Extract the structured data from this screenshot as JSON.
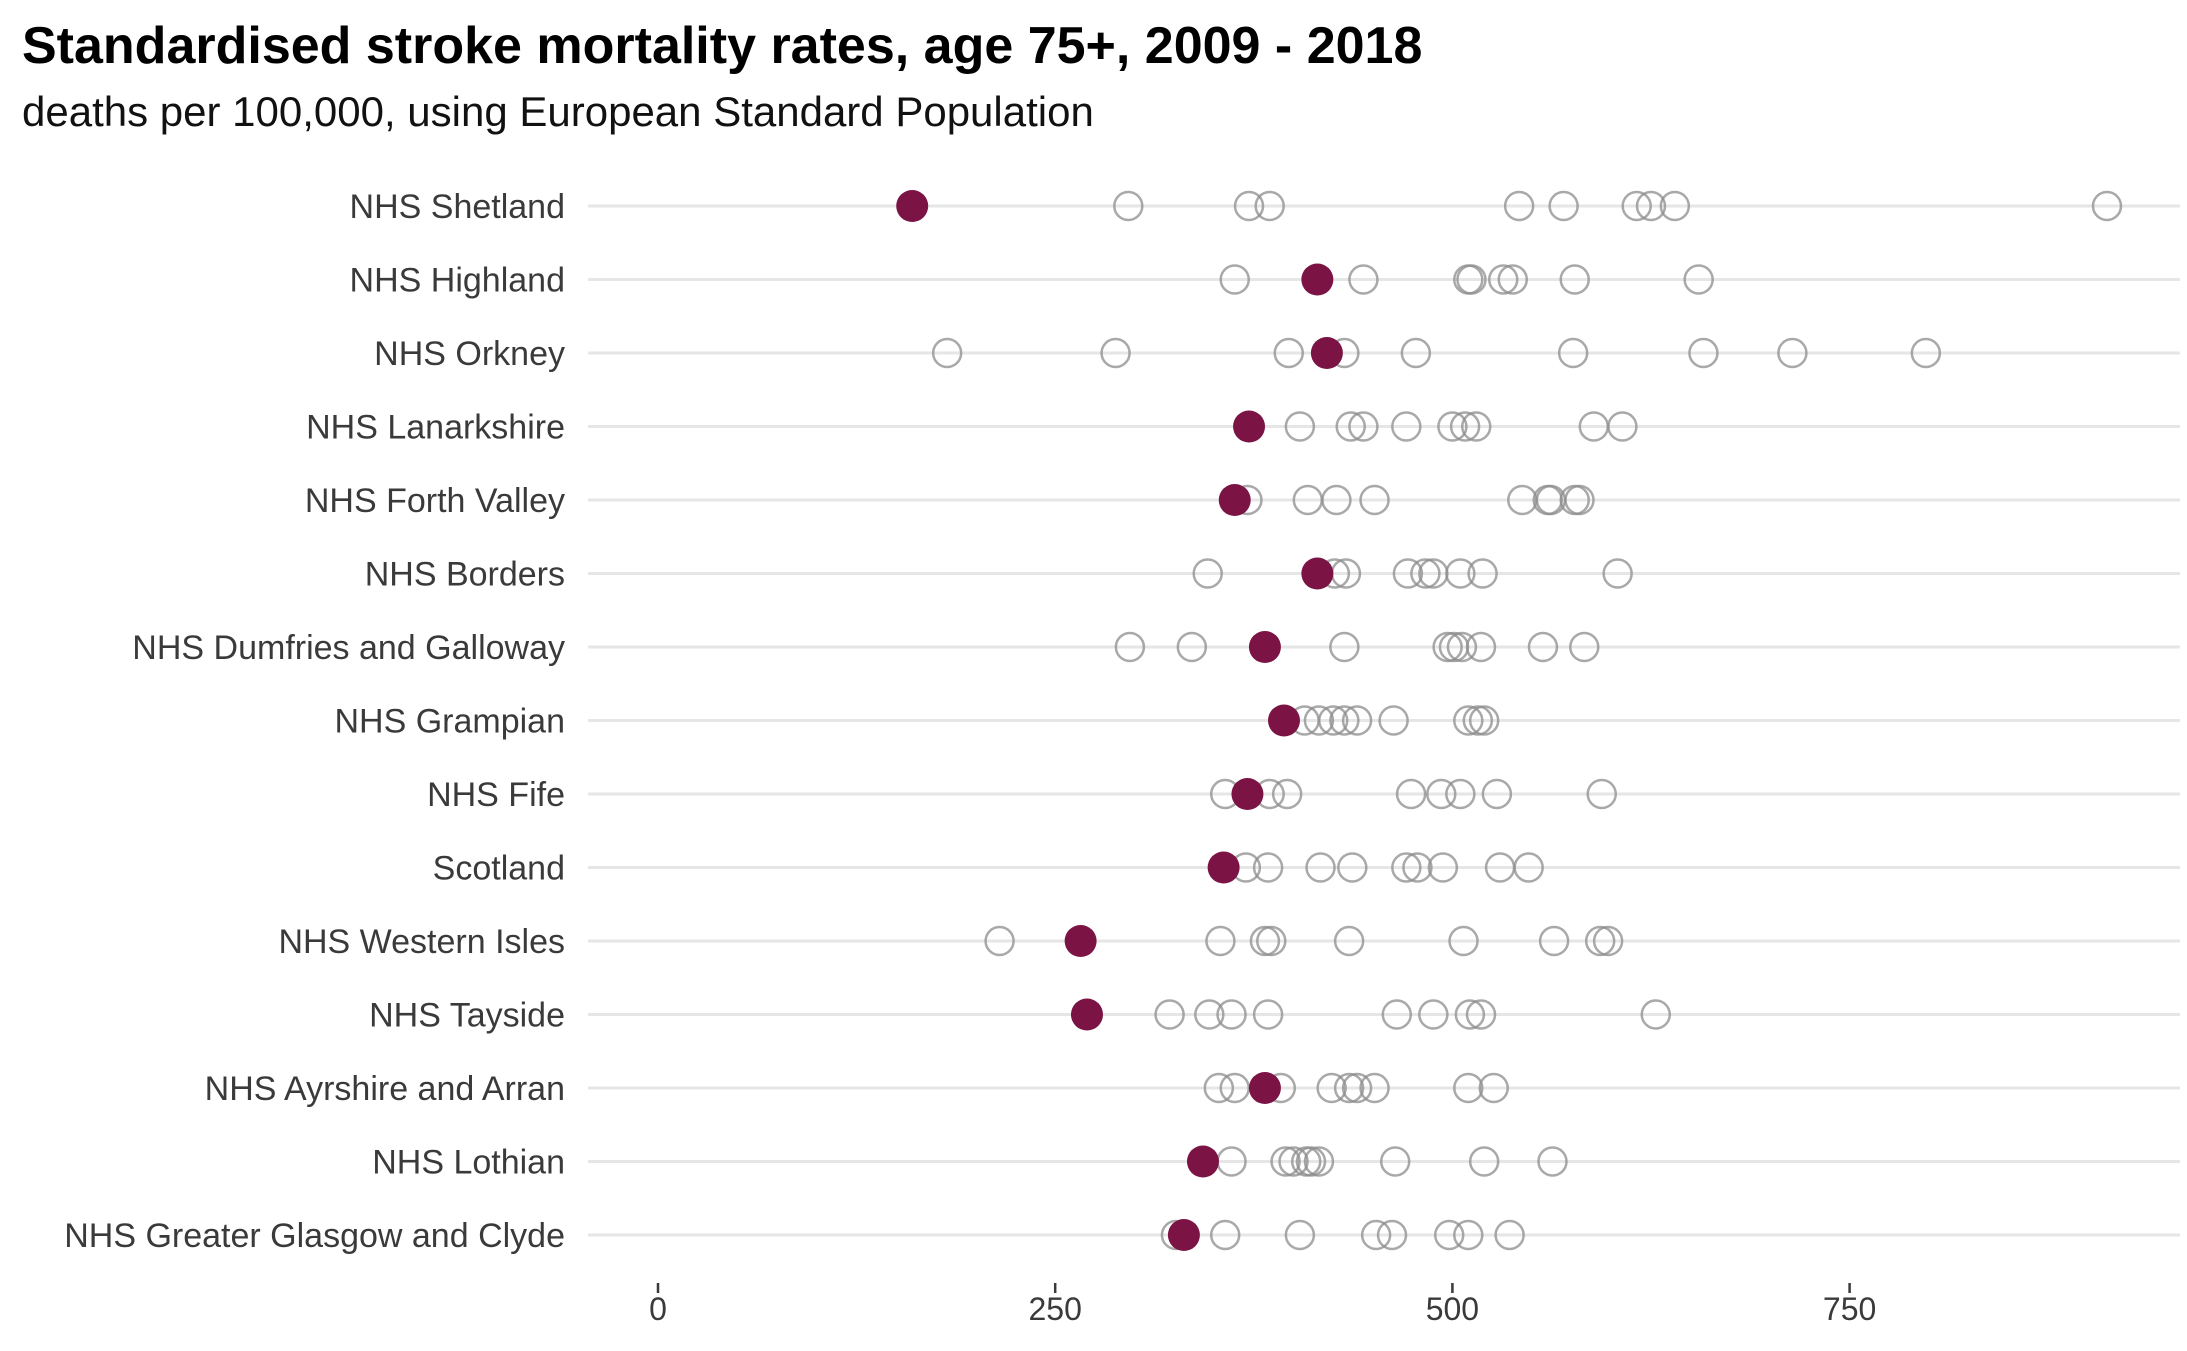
{
  "chart_data": {
    "type": "scatter",
    "title": "Standardised stroke mortality rates, age 75+, 2009 - 2018",
    "subtitle": "deaths per 100,000, using European Standard Population",
    "xlabel": "",
    "ylabel": "",
    "xlim": [
      -20,
      960
    ],
    "xticks": [
      0,
      250,
      500,
      750
    ],
    "grid": true,
    "legend": "none",
    "colors": {
      "highlight": "#7b1345",
      "other_stroke": "#8c8c8c",
      "gridline": "#e6e6e6"
    },
    "categories": [
      "NHS Shetland",
      "NHS Highland",
      "NHS Orkney",
      "NHS Lanarkshire",
      "NHS Forth Valley",
      "NHS Borders",
      "NHS Dumfries and Galloway",
      "NHS Grampian",
      "NHS Fife",
      "Scotland",
      "NHS Western Isles",
      "NHS Tayside",
      "NHS Ayrshire and Arran",
      "NHS Lothian",
      "NHS Greater Glasgow and Clyde"
    ],
    "rows": [
      {
        "highlight": 160,
        "others": [
          296,
          372,
          385,
          542,
          570,
          616,
          625,
          640,
          912
        ]
      },
      {
        "highlight": 415,
        "others": [
          363,
          444,
          510,
          512,
          532,
          538,
          577,
          655
        ]
      },
      {
        "highlight": 421,
        "others": [
          182,
          288,
          397,
          432,
          477,
          576,
          658,
          714,
          798
        ]
      },
      {
        "highlight": 372,
        "others": [
          404,
          436,
          444,
          471,
          500,
          508,
          515,
          589,
          607
        ]
      },
      {
        "highlight": 363,
        "others": [
          371,
          409,
          427,
          451,
          544,
          560,
          562,
          577,
          580
        ]
      },
      {
        "highlight": 415,
        "others": [
          346,
          426,
          433,
          472,
          483,
          488,
          505,
          519,
          604
        ]
      },
      {
        "highlight": 382,
        "others": [
          297,
          336,
          432,
          497,
          501,
          506,
          518,
          557,
          583
        ]
      },
      {
        "highlight": 394,
        "others": [
          407,
          416,
          425,
          432,
          440,
          463,
          510,
          516,
          520
        ]
      },
      {
        "highlight": 371,
        "others": [
          357,
          385,
          396,
          474,
          493,
          505,
          528,
          594
        ]
      },
      {
        "highlight": 356,
        "others": [
          370,
          384,
          417,
          437,
          471,
          478,
          494,
          530,
          548
        ]
      },
      {
        "highlight": 266,
        "others": [
          215,
          354,
          382,
          386,
          435,
          507,
          564,
          593,
          598
        ]
      },
      {
        "highlight": 270,
        "others": [
          322,
          347,
          361,
          384,
          465,
          488,
          511,
          518,
          628
        ]
      },
      {
        "highlight": 382,
        "others": [
          353,
          363,
          392,
          424,
          435,
          440,
          451,
          510,
          526
        ]
      },
      {
        "highlight": 343,
        "others": [
          361,
          395,
          400,
          408,
          411,
          416,
          464,
          520,
          563
        ]
      },
      {
        "highlight": 331,
        "others": [
          326,
          357,
          404,
          452,
          462,
          498,
          510,
          536
        ]
      }
    ]
  }
}
